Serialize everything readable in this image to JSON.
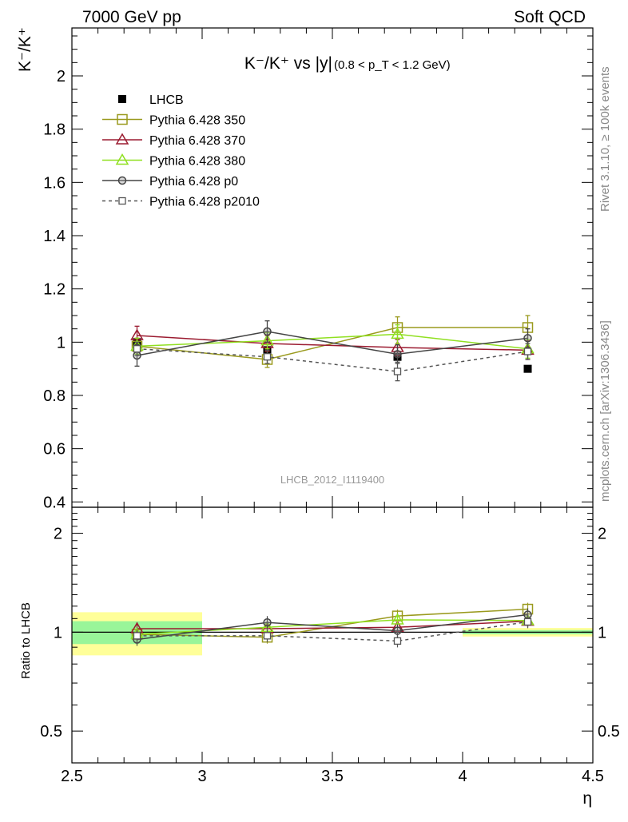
{
  "header": {
    "left_label": "7000 GeV pp",
    "right_label": "Soft QCD"
  },
  "side_labels": {
    "rivet": "Rivet 3.1.10, ≥ 100k events",
    "mcplots": "mcplots.cern.ch [arXiv:1306.3436]"
  },
  "watermark": "LHCB_2012_I1119400",
  "chart_data": [
    {
      "type": "line",
      "title": "K⁻/K⁺ vs |y|",
      "title_note": "(0.8 < p_T < 1.2 GeV)",
      "ylabel": "K⁻/K⁺",
      "xlim": [
        2.5,
        4.5
      ],
      "ylim": [
        0.38,
        2.18
      ],
      "yticks": [
        0.4,
        0.6,
        0.8,
        1,
        1.2,
        1.4,
        1.6,
        1.8,
        2
      ],
      "x": [
        2.75,
        3.25,
        3.75,
        4.25
      ],
      "legend_position": "top-left",
      "series": [
        {
          "name": "LHCB",
          "color": "#000000",
          "marker": "filled-square",
          "values": [
            1.0,
            0.97,
            0.945,
            0.9
          ]
        },
        {
          "name": "Pythia 6.428 350",
          "color": "#9a9a1e",
          "marker": "open-square",
          "values": [
            0.985,
            0.935,
            1.055,
            1.055
          ],
          "errors": [
            0.03,
            0.03,
            0.04,
            0.045
          ]
        },
        {
          "name": "Pythia 6.428 370",
          "color": "#9b1b30",
          "marker": "open-triangle",
          "values": [
            1.025,
            0.995,
            0.98,
            0.97
          ],
          "errors": [
            0.035,
            0.03,
            0.03,
            0.035
          ]
        },
        {
          "name": "Pythia 6.428 380",
          "color": "#90e020",
          "marker": "open-triangle",
          "values": [
            0.985,
            1.005,
            1.03,
            0.975
          ],
          "errors": [
            0.03,
            0.03,
            0.035,
            0.035
          ]
        },
        {
          "name": "Pythia 6.428 p0",
          "color": "#444444",
          "marker": "open-circle",
          "values": [
            0.95,
            1.04,
            0.955,
            1.015
          ],
          "errors": [
            0.04,
            0.04,
            0.035,
            0.035
          ]
        },
        {
          "name": "Pythia 6.428 p2010",
          "color": "#555555",
          "marker": "small-open-square",
          "dashed": true,
          "values": [
            0.975,
            0.945,
            0.89,
            0.965
          ],
          "errors": [
            0.025,
            0.025,
            0.035,
            0.03
          ]
        }
      ]
    },
    {
      "type": "line",
      "ylabel": "Ratio to LHCB",
      "xlabel": "η",
      "xlim": [
        2.5,
        4.5
      ],
      "ylim": [
        0.4,
        2.4
      ],
      "scale": "log",
      "yticks": [
        0.5,
        1,
        2
      ],
      "xticks": [
        2.5,
        3,
        3.5,
        4,
        4.5
      ],
      "x": [
        2.75,
        3.25,
        3.75,
        4.25
      ],
      "bands": [
        {
          "x": [
            2.5,
            3.0
          ],
          "inner": [
            0.92,
            1.08
          ],
          "outer": [
            0.85,
            1.15
          ]
        },
        {
          "x": [
            4.0,
            4.5
          ],
          "inner": [
            0.985,
            1.015
          ],
          "outer": [
            0.97,
            1.03
          ]
        }
      ],
      "series": [
        {
          "name": "Pythia 6.428 350",
          "values": [
            0.985,
            0.965,
            1.12,
            1.175
          ]
        },
        {
          "name": "Pythia 6.428 370",
          "values": [
            1.025,
            1.025,
            1.035,
            1.08
          ]
        },
        {
          "name": "Pythia 6.428 380",
          "values": [
            0.985,
            1.035,
            1.09,
            1.085
          ]
        },
        {
          "name": "Pythia 6.428 p0",
          "values": [
            0.95,
            1.07,
            1.01,
            1.13
          ]
        },
        {
          "name": "Pythia 6.428 p2010",
          "values": [
            0.975,
            0.975,
            0.94,
            1.075
          ]
        }
      ]
    }
  ]
}
